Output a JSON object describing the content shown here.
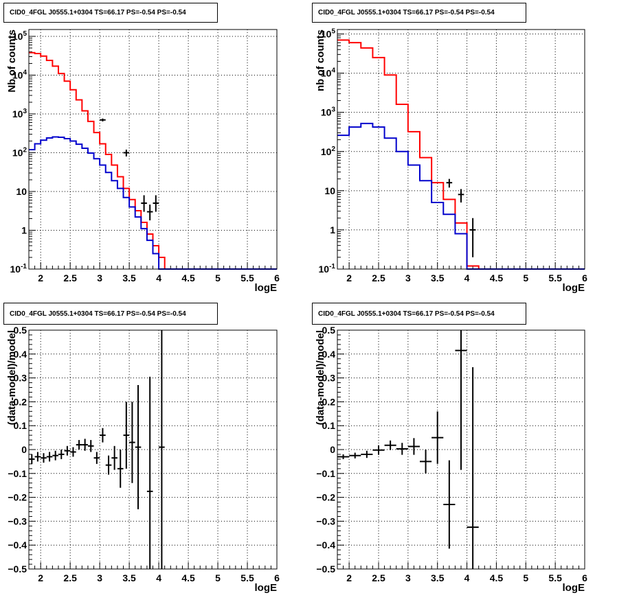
{
  "panels": [
    {
      "title": "CID0_4FGL J0555.1+0304 TS=66.17 PS=-0.54 PS=-0.54",
      "chart_data": {
        "type": "line",
        "scale": "log-y",
        "xlabel": "logE",
        "ylabel": "Nb of counts",
        "xlim": [
          1.8,
          6.0
        ],
        "ylim": [
          0.1,
          150000
        ],
        "xticks": [
          "2",
          "2.5",
          "3",
          "3.5",
          "4",
          "4.5",
          "5",
          "5.5",
          "6"
        ],
        "yticks": [
          "10^-1",
          "1",
          "10",
          "10^2",
          "10^3",
          "10^4",
          "10^5"
        ],
        "grid": true,
        "bin_edges": [
          1.8,
          1.9,
          2.0,
          2.1,
          2.2,
          2.3,
          2.4,
          2.5,
          2.6,
          2.7,
          2.8,
          2.9,
          3.0,
          3.1,
          3.2,
          3.3,
          3.4,
          3.5,
          3.6,
          3.7,
          3.8,
          3.9,
          4.0,
          4.1,
          4.2,
          4.3,
          4.4,
          4.5,
          4.6,
          4.7,
          4.8,
          4.9,
          5.0,
          5.1,
          5.2,
          5.3,
          5.4,
          5.5,
          5.6,
          5.7,
          5.8,
          5.9,
          6.0
        ],
        "series": [
          {
            "color": "#ff0000",
            "values": [
              38000,
              36000,
              31000,
              24000,
              17000,
              11000,
              7000,
              4200,
              2300,
              1200,
              640,
              330,
              170,
              90,
              48,
              24,
              12,
              6.2,
              3.2,
              1.6,
              0.8,
              0.4,
              0.2,
              0.1,
              0.05,
              0.05,
              0.05,
              0.05,
              0.05,
              0.05,
              0.05,
              0.05,
              0.05,
              0.05,
              0.05,
              0.05,
              0.05,
              0.05,
              0.05,
              0.05,
              0.05,
              0.05
            ]
          },
          {
            "color": "#0000cc",
            "values": [
              120,
              170,
              210,
              240,
              255,
              250,
              230,
              200,
              165,
              130,
              98,
              70,
              48,
              31,
              19,
              12,
              7,
              4,
              2.2,
              1.1,
              0.55,
              0.25,
              0.1,
              0.1,
              0.1,
              0.1,
              0.1,
              0.1,
              0.1,
              0.1,
              0.1,
              0.1,
              0.1,
              0.1,
              0.1,
              0.1,
              0.1,
              0.1,
              0.1,
              0.1,
              0.1,
              0.1
            ]
          }
        ],
        "points": [
          {
            "x": 3.45,
            "y": 100,
            "yerr": [
              80,
              120
            ]
          },
          {
            "x": 3.75,
            "y": 5,
            "yerr": [
              3,
              8
            ]
          },
          {
            "x": 3.85,
            "y": 3,
            "yerr": [
              1.8,
              4.6
            ]
          },
          {
            "x": 3.95,
            "y": 5,
            "yerr": [
              3,
              8
            ]
          },
          {
            "x": 3.05,
            "y": 700,
            "yerr": [
              640,
              760
            ]
          }
        ]
      }
    },
    {
      "title": "CID0_4FGL J0555.1+0304 TS=66.17 PS=-0.54 PS=-0.54",
      "chart_data": {
        "type": "line",
        "scale": "log-y",
        "xlabel": "logE",
        "ylabel": "nb of counts",
        "xlim": [
          1.8,
          6.0
        ],
        "ylim": [
          0.1,
          130000
        ],
        "xticks": [
          "2",
          "2.5",
          "3",
          "3.5",
          "4",
          "4.5",
          "5",
          "5.5",
          "6"
        ],
        "yticks": [
          "10^-1",
          "1",
          "10",
          "10^2",
          "10^3",
          "10^4",
          "10^5"
        ],
        "grid": true,
        "bin_edges": [
          1.8,
          2.0,
          2.2,
          2.4,
          2.6,
          2.8,
          3.0,
          3.2,
          3.4,
          3.6,
          3.8,
          4.0,
          4.2,
          4.4,
          4.6,
          4.8,
          5.0,
          5.2,
          5.4,
          5.6,
          5.8,
          6.0
        ],
        "series": [
          {
            "color": "#ff0000",
            "values": [
              70000,
              60000,
              44000,
              25000,
              9000,
              1600,
              320,
              70,
              16,
              6,
              1.5,
              0.12,
              0.05,
              0.05,
              0.05,
              0.05,
              0.05,
              0.05,
              0.05,
              0.05,
              0.05
            ]
          },
          {
            "color": "#0000cc",
            "values": [
              260,
              420,
              520,
              420,
              220,
              100,
              45,
              18,
              5,
              2.5,
              0.8,
              0.1,
              0.1,
              0.1,
              0.1,
              0.1,
              0.1,
              0.1,
              0.1,
              0.1,
              0.1
            ]
          }
        ],
        "points": [
          {
            "x": 3.7,
            "y": 16,
            "yerr": [
              12,
              20
            ]
          },
          {
            "x": 3.9,
            "y": 8,
            "yerr": [
              5,
              11
            ]
          },
          {
            "x": 4.1,
            "y": 1,
            "yerr": [
              0.2,
              2
            ]
          }
        ]
      }
    },
    {
      "title": "CID0_4FGL J0555.1+0304 TS=66.17 PS=-0.54 PS=-0.54",
      "chart_data": {
        "type": "scatter",
        "xlabel": "logE",
        "ylabel": "(data-model)/model",
        "xlim": [
          1.8,
          6.0
        ],
        "ylim": [
          -0.5,
          0.5
        ],
        "xticks": [
          "2",
          "2.5",
          "3",
          "3.5",
          "4",
          "4.5",
          "5",
          "5.5",
          "6"
        ],
        "yticks": [
          "-0.5",
          "-0.4",
          "-0.3",
          "-0.2",
          "-0.1",
          "0",
          "0.1",
          "0.2",
          "0.3",
          "0.4",
          "0.5"
        ],
        "grid": true,
        "xerr": 0.05,
        "points": [
          {
            "x": 1.85,
            "y": -0.04,
            "yerr": 0.02
          },
          {
            "x": 1.95,
            "y": -0.03,
            "yerr": 0.02
          },
          {
            "x": 2.05,
            "y": -0.035,
            "yerr": 0.02
          },
          {
            "x": 2.15,
            "y": -0.03,
            "yerr": 0.02
          },
          {
            "x": 2.25,
            "y": -0.025,
            "yerr": 0.02
          },
          {
            "x": 2.35,
            "y": -0.02,
            "yerr": 0.02
          },
          {
            "x": 2.45,
            "y": -0.005,
            "yerr": 0.02
          },
          {
            "x": 2.55,
            "y": -0.01,
            "yerr": 0.02
          },
          {
            "x": 2.65,
            "y": 0.02,
            "yerr": 0.02
          },
          {
            "x": 2.75,
            "y": 0.02,
            "yerr": 0.025
          },
          {
            "x": 2.85,
            "y": 0.015,
            "yerr": 0.025
          },
          {
            "x": 2.95,
            "y": -0.035,
            "yerr": 0.025
          },
          {
            "x": 3.05,
            "y": 0.06,
            "yerr": 0.03
          },
          {
            "x": 3.15,
            "y": -0.065,
            "yerr": 0.04
          },
          {
            "x": 3.25,
            "y": -0.035,
            "yerr": 0.05
          },
          {
            "x": 3.35,
            "y": -0.08,
            "yerr": 0.08
          },
          {
            "x": 3.45,
            "y": 0.06,
            "yerr": 0.14
          },
          {
            "x": 3.55,
            "y": 0.03,
            "yerr": 0.17
          },
          {
            "x": 3.65,
            "y": 0.01,
            "yerr": 0.26
          },
          {
            "x": 3.85,
            "y": -0.175,
            "yerr": 0.48
          },
          {
            "x": 4.05,
            "y": 0.01,
            "yerr": 0.8
          }
        ]
      }
    },
    {
      "title": "CID0_4FGL J0555.1+0304 TS=66.17 PS=-0.54 PS=-0.54",
      "chart_data": {
        "type": "scatter",
        "xlabel": "logE",
        "ylabel": "(data-model)/model",
        "xlim": [
          1.8,
          6.0
        ],
        "ylim": [
          -0.5,
          0.5
        ],
        "xticks": [
          "2",
          "2.5",
          "3",
          "3.5",
          "4",
          "4.5",
          "5",
          "5.5",
          "6"
        ],
        "yticks": [
          "-0.5",
          "-0.4",
          "-0.3",
          "-0.2",
          "-0.1",
          "0",
          "0.1",
          "0.2",
          "0.3",
          "0.4",
          "0.5"
        ],
        "grid": true,
        "xerr": 0.1,
        "points": [
          {
            "x": 1.9,
            "y": -0.03,
            "yerr": 0.01
          },
          {
            "x": 2.1,
            "y": -0.025,
            "yerr": 0.012
          },
          {
            "x": 2.3,
            "y": -0.02,
            "yerr": 0.015
          },
          {
            "x": 2.5,
            "y": -0.002,
            "yerr": 0.02
          },
          {
            "x": 2.7,
            "y": 0.018,
            "yerr": 0.02
          },
          {
            "x": 2.9,
            "y": 0.003,
            "yerr": 0.025
          },
          {
            "x": 3.1,
            "y": 0.013,
            "yerr": 0.035
          },
          {
            "x": 3.3,
            "y": -0.05,
            "yerr": 0.05
          },
          {
            "x": 3.5,
            "y": 0.05,
            "yerr": 0.11
          },
          {
            "x": 3.7,
            "y": -0.23,
            "yerr": 0.185
          },
          {
            "x": 3.9,
            "y": 0.415,
            "yerr": 0.5
          },
          {
            "x": 4.1,
            "y": -0.325,
            "yerr": 0.67
          }
        ]
      }
    }
  ]
}
